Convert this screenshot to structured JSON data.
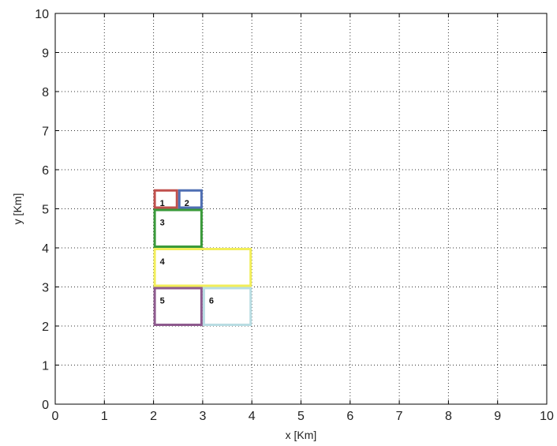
{
  "chart_data": {
    "type": "scatter",
    "xlabel": "x [Km]",
    "ylabel": "y [Km]",
    "xlim": [
      0,
      10
    ],
    "ylim": [
      0,
      10
    ],
    "xticks": [
      "0",
      "1",
      "2",
      "3",
      "4",
      "5",
      "6",
      "7",
      "8",
      "9",
      "10"
    ],
    "yticks": [
      "0",
      "1",
      "2",
      "3",
      "4",
      "5",
      "6",
      "7",
      "8",
      "9",
      "10"
    ],
    "grid": true,
    "grid_style": "dotted",
    "regions": [
      {
        "label": "1",
        "x": [
          2.0,
          2.5
        ],
        "y": [
          5.0,
          5.5
        ],
        "color": "#c0504d"
      },
      {
        "label": "2",
        "x": [
          2.5,
          3.0
        ],
        "y": [
          5.0,
          5.5
        ],
        "color": "#4f6fb3"
      },
      {
        "label": "3",
        "x": [
          2.0,
          3.0
        ],
        "y": [
          4.0,
          5.0
        ],
        "color": "#3a9a3a"
      },
      {
        "label": "4",
        "x": [
          2.0,
          4.0
        ],
        "y": [
          3.0,
          4.0
        ],
        "color": "#f2ee5a"
      },
      {
        "label": "5",
        "x": [
          2.0,
          3.0
        ],
        "y": [
          2.0,
          3.0
        ],
        "color": "#8e5a8e"
      },
      {
        "label": "6",
        "x": [
          3.0,
          4.0
        ],
        "y": [
          2.0,
          3.0
        ],
        "color": "#b9dde3"
      }
    ]
  }
}
